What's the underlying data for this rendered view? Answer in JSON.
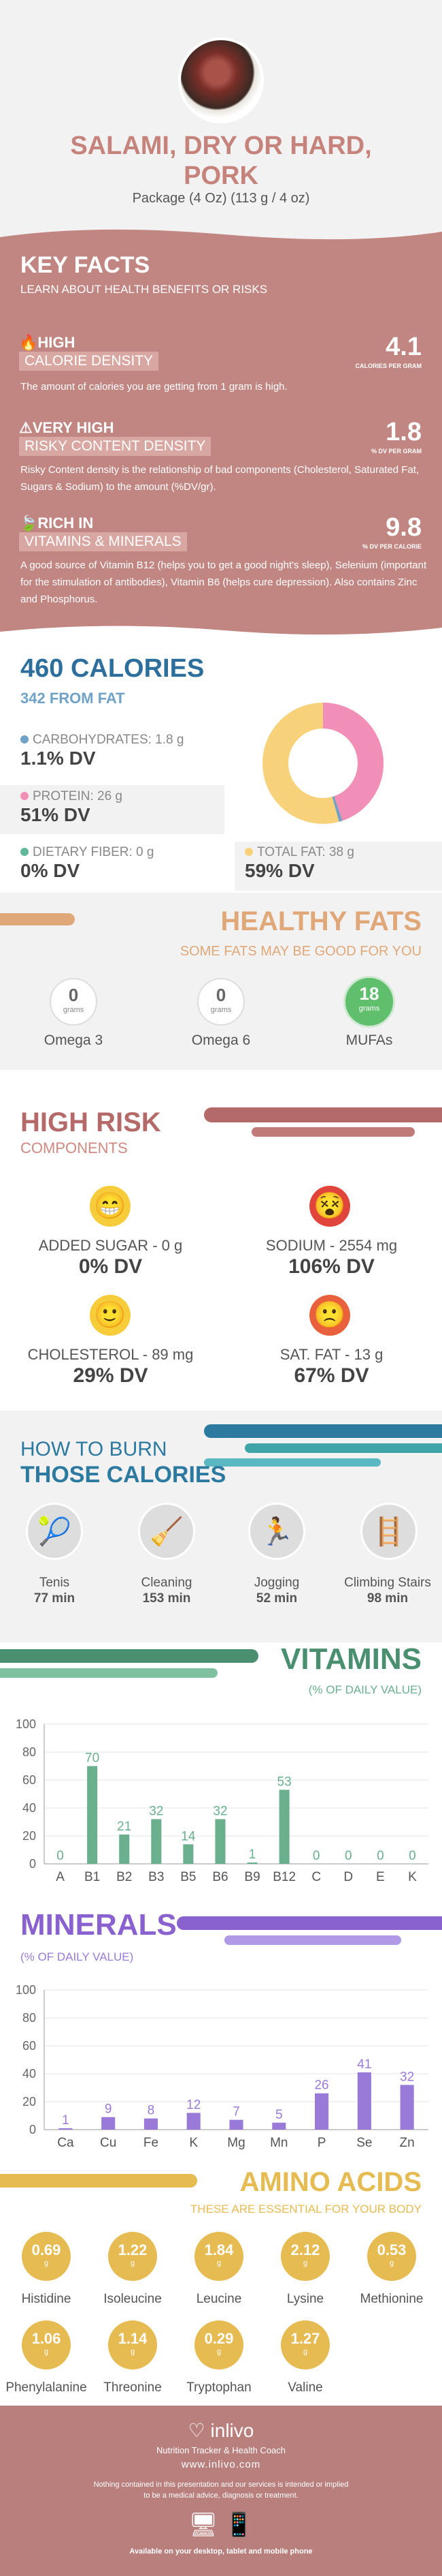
{
  "header": {
    "title_line1": "SALAMI, DRY OR HARD,",
    "title_line2": "PORK",
    "serving": "Package (4 Oz) (113 g / 4 oz)"
  },
  "key_facts": {
    "title": "KEY FACTS",
    "subtitle": "LEARN ABOUT HEALTH BENEFITS OR RISKS",
    "items": [
      {
        "level": "HIGH",
        "label": "CALORIE DENSITY",
        "value": "4.1",
        "unit": "CALORIES PER GRAM",
        "desc": "The amount of calories you are getting from 1 gram is high."
      },
      {
        "level": "VERY HIGH",
        "label": "RISKY CONTENT DENSITY",
        "value": "1.8",
        "unit": "% DV PER GRAM",
        "desc": "Risky Content density is the relationship of bad components (Cholesterol, Saturated Fat, Sugars & Sodium) to the amount (%DV/gr)."
      },
      {
        "level": "RICH  IN",
        "label": "VITAMINS & MINERALS",
        "value": "9.8",
        "unit": "% DV PER CALORIE",
        "desc": "A good source of Vitamin B12 (helps you to get a good night's sleep), Selenium (important for the stimulation of antibodies), Vitamin B6 (helps cure depression). Also contains Zinc and Phosphorus."
      }
    ]
  },
  "calories": {
    "title": "460 CALORIES",
    "from_fat": "342 FROM FAT",
    "carbs": {
      "label": "CARBOHYDRATES: 1.8 g",
      "dv": "1.1% DV",
      "color": "#6fa2c6"
    },
    "protein": {
      "label": "PROTEIN: 26 g",
      "dv": "51% DV",
      "color": "#f28fb8"
    },
    "fiber": {
      "label": "DIETARY FIBER: 0 g",
      "dv": "0% DV",
      "color": "#5fb89a"
    },
    "fat": {
      "label": "TOTAL FAT: 38 g",
      "dv": "59% DV",
      "color": "#f7d27a"
    }
  },
  "fats": {
    "title": "HEALTHY FATS",
    "subtitle": "SOME FATS MAY BE GOOD FOR YOU",
    "unit": "grams",
    "items": [
      {
        "name": "Omega 3",
        "value": "0"
      },
      {
        "name": "Omega 6",
        "value": "0"
      },
      {
        "name": "MUFAs",
        "value": "18"
      }
    ]
  },
  "risk": {
    "title": "HIGH RISK",
    "subtitle": "COMPONENTS",
    "items": [
      {
        "label": "ADDED SUGAR - 0 g",
        "dv": "0% DV",
        "face": "😁",
        "color": "#f7cc3a"
      },
      {
        "label": "SODIUM - 2554 mg",
        "dv": "106% DV",
        "face": "😵",
        "color": "#e0443a"
      },
      {
        "label": "CHOLESTEROL - 89 mg",
        "dv": "29% DV",
        "face": "🙂",
        "color": "#f7cc3a"
      },
      {
        "label": "SAT. FAT - 13 g",
        "dv": "67% DV",
        "face": "🙁",
        "color": "#e9603c"
      }
    ]
  },
  "burn": {
    "title1": "HOW TO BURN",
    "title2": "THOSE CALORIES",
    "items": [
      {
        "name": "Tenis",
        "minutes": "77 min"
      },
      {
        "name": "Cleaning",
        "minutes": "153 min"
      },
      {
        "name": "Jogging",
        "minutes": "52 min"
      },
      {
        "name": "Climbing Stairs",
        "minutes": "98 min"
      }
    ]
  },
  "vitamins": {
    "title": "VITAMINS",
    "subtitle": "(% OF DAILY VALUE)"
  },
  "minerals": {
    "title": "MINERALS",
    "subtitle": "(% OF DAILY VALUE)"
  },
  "chart_data": [
    {
      "type": "bar",
      "categories": [
        "A",
        "B1",
        "B2",
        "B3",
        "B5",
        "B6",
        "B9",
        "B12",
        "C",
        "D",
        "E",
        "K"
      ],
      "values": [
        0,
        70,
        21,
        32,
        14,
        32,
        1,
        53,
        0,
        0,
        0,
        0
      ],
      "ylim": [
        0,
        100
      ],
      "yticks": [
        0,
        20,
        40,
        60,
        80,
        100
      ],
      "color": "#6ab08e",
      "title": "VITAMINS",
      "subtitle": "(% OF DAILY VALUE)"
    },
    {
      "type": "bar",
      "categories": [
        "Ca",
        "Cu",
        "Fe",
        "K",
        "Mg",
        "Mn",
        "P",
        "Se",
        "Zn"
      ],
      "values": [
        1,
        9,
        8,
        12,
        7,
        5,
        26,
        41,
        32
      ],
      "ylim": [
        0,
        100
      ],
      "yticks": [
        0,
        20,
        40,
        60,
        80,
        100
      ],
      "color": "#9a7ad8",
      "title": "MINERALS",
      "subtitle": "(% OF DAILY VALUE)"
    }
  ],
  "amino": {
    "title": "AMINO ACIDS",
    "subtitle": "THESE ARE ESSENTIAL FOR YOUR BODY",
    "unit": "g",
    "row1": [
      {
        "name": "Histidine",
        "value": "0.69"
      },
      {
        "name": "Isoleucine",
        "value": "1.22"
      },
      {
        "name": "Leucine",
        "value": "1.84"
      },
      {
        "name": "Lysine",
        "value": "2.12"
      },
      {
        "name": "Methionine",
        "value": "0.53"
      }
    ],
    "row2": [
      {
        "name": "Phenylalanine",
        "value": "1.06"
      },
      {
        "name": "Threonine",
        "value": "1.14"
      },
      {
        "name": "Tryptophan",
        "value": "0.29"
      },
      {
        "name": "Valine",
        "value": "1.27"
      }
    ]
  },
  "footer": {
    "brand": "inlivo",
    "tagline": "Nutrition Tracker & Health Coach",
    "url": "www.inlivo.com",
    "disclaimer1": "Nothing contained in this presentation and our services is intended or implied",
    "disclaimer2": "to be a medical advice, diagnosis or treatment.",
    "devices": "Available on your desktop, tablet and mobile phone"
  }
}
